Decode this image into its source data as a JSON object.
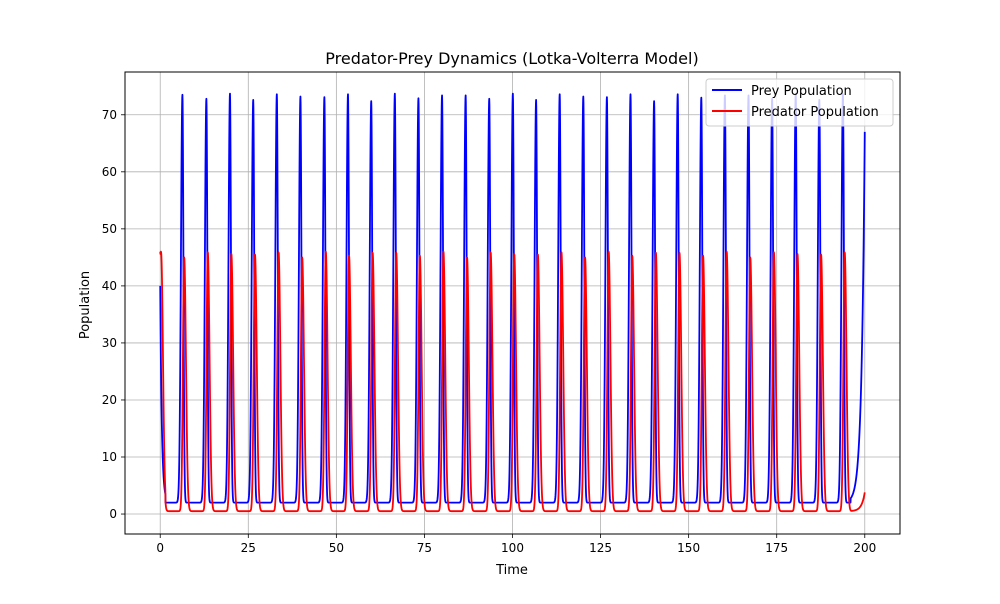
{
  "figure": {
    "title": "Predator-Prey Dynamics (Lotka-Volterra Model)",
    "xlabel": "Time",
    "ylabel": "Population"
  },
  "legend": {
    "prey_label": "Prey Population",
    "predator_label": "Predator Population"
  },
  "chart_data": {
    "type": "line",
    "title": "Predator-Prey Dynamics (Lotka-Volterra Model)",
    "xlabel": "Time",
    "ylabel": "Population",
    "xlim": [
      -10,
      210
    ],
    "ylim": [
      -3.5,
      77.5
    ],
    "x_ticks": [
      0,
      25,
      50,
      75,
      100,
      125,
      150,
      175,
      200
    ],
    "y_ticks": [
      0,
      10,
      20,
      30,
      40,
      50,
      60,
      70
    ],
    "grid": true,
    "legend_position": "upper right",
    "series": [
      {
        "name": "Prey Population",
        "color": "#0000ff",
        "x_range": [
          0,
          200
        ],
        "initial": 40,
        "minimum": 2,
        "end_value": 67,
        "peak_times": [
          6.3,
          13.1,
          19.8,
          26.4,
          33.1,
          39.8,
          46.6,
          53.3,
          59.9,
          66.6,
          73.3,
          80.0,
          86.7,
          93.4,
          100.1,
          106.7,
          113.4,
          120.1,
          126.8,
          133.5,
          140.2,
          146.9,
          153.6,
          160.3,
          167.0,
          173.7,
          180.4,
          187.1,
          193.8
        ],
        "peak_values": [
          73.5,
          72.8,
          73.7,
          72.6,
          73.6,
          73.2,
          73.1,
          73.6,
          72.4,
          73.7,
          72.9,
          73.4,
          73.4,
          72.8,
          73.7,
          72.6,
          73.6,
          73.2,
          73.1,
          73.6,
          72.4,
          73.6,
          73.0,
          73.4,
          73.4,
          72.8,
          73.7,
          72.6,
          73.6
        ]
      },
      {
        "name": "Predator Population",
        "color": "#ff0000",
        "x_range": [
          0,
          200
        ],
        "initial": 46,
        "minimum": 0.5,
        "end_value": 3.8,
        "peak_times": [
          0.2,
          6.8,
          13.5,
          20.2,
          26.9,
          33.6,
          40.3,
          47.0,
          53.6,
          60.3,
          67.0,
          73.7,
          80.4,
          87.1,
          93.8,
          100.5,
          107.2,
          113.9,
          120.6,
          127.3,
          134.0,
          140.7,
          147.4,
          154.1,
          160.8,
          167.5,
          174.2,
          180.9,
          187.6,
          194.3
        ],
        "peak_values": [
          46,
          45.0,
          45.9,
          45.6,
          45.5,
          45.9,
          45.0,
          46.0,
          45.3,
          45.8,
          45.8,
          45.3,
          46.0,
          45.0,
          45.9,
          45.6,
          45.5,
          45.9,
          45.0,
          46.0,
          45.3,
          45.8,
          45.8,
          45.3,
          46.0,
          45.0,
          45.9,
          45.6,
          45.5,
          45.9
        ]
      }
    ]
  }
}
